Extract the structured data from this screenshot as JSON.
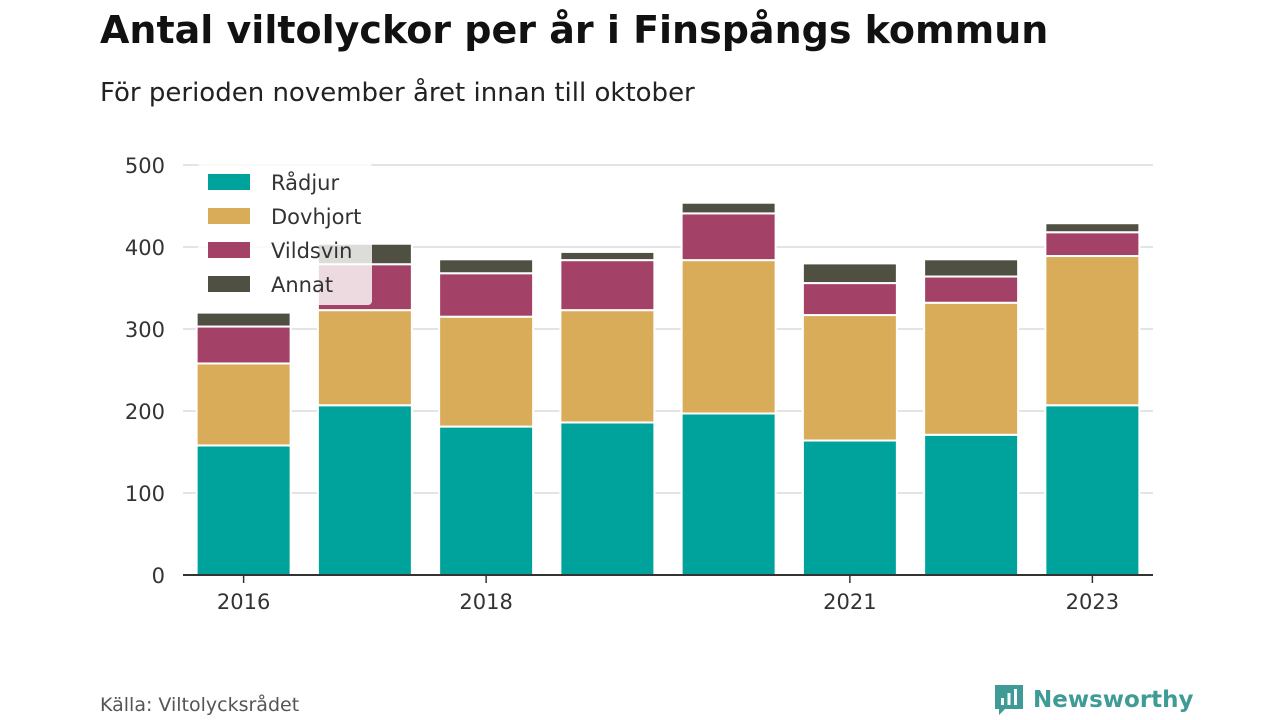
{
  "title": "Antal viltolyckor per år i Finspångs kommun",
  "subtitle": "För perioden november året innan till oktober",
  "source": "Källa: Viltolycksrådet",
  "brand": {
    "name": "Newsworthy",
    "icon": "newsworthy-logo-icon",
    "color": "#3e9b96"
  },
  "chart_data": {
    "type": "bar",
    "stacked": true,
    "categories": [
      "2016",
      "2017",
      "2018",
      "2019",
      "2020",
      "2021",
      "2022",
      "2023"
    ],
    "x_tick_labels": [
      "2016",
      "",
      "2018",
      "",
      "",
      "2021",
      "",
      "2023"
    ],
    "ylim": [
      0,
      500
    ],
    "y_ticks": [
      "0",
      "100",
      "200",
      "300",
      "400",
      "500"
    ],
    "grid": true,
    "legend_position": "top-left",
    "series": [
      {
        "name": "Rådjur",
        "color": "#00a39b",
        "values": [
          158,
          207,
          181,
          186,
          197,
          164,
          171,
          207
        ]
      },
      {
        "name": "Dovhjort",
        "color": "#d8ac58",
        "values": [
          100,
          116,
          134,
          137,
          187,
          153,
          161,
          182
        ]
      },
      {
        "name": "Vildsvin",
        "color": "#a44166",
        "values": [
          45,
          56,
          53,
          61,
          57,
          39,
          32,
          29
        ]
      },
      {
        "name": "Annat",
        "color": "#4f5041",
        "values": [
          17,
          25,
          17,
          10,
          13,
          24,
          21,
          11
        ]
      }
    ]
  }
}
